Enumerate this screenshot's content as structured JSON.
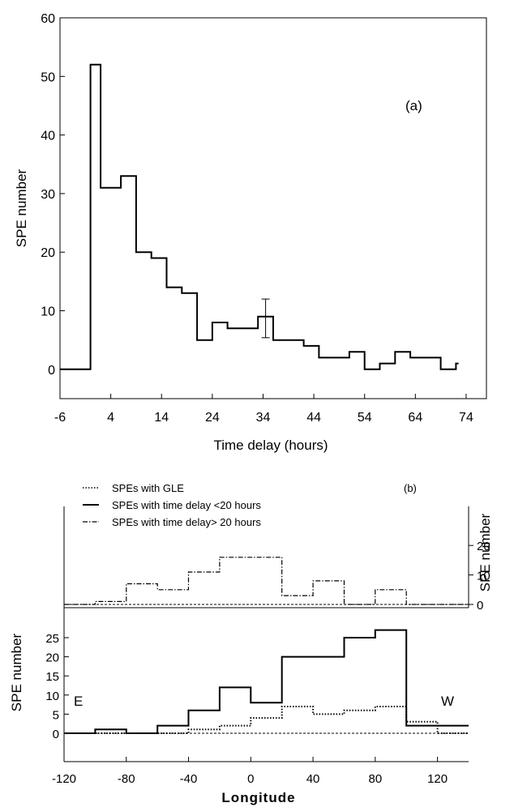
{
  "chart_data": [
    {
      "type": "line",
      "step": true,
      "panel_label": "(a)",
      "xlabel": "Time delay (hours)",
      "ylabel": "SPE number",
      "xlim": [
        -6,
        78
      ],
      "ylim": [
        -5,
        60
      ],
      "xticks": [
        -6,
        4,
        14,
        24,
        34,
        44,
        54,
        64,
        74
      ],
      "yticks": [
        0,
        10,
        20,
        30,
        40,
        50,
        60
      ],
      "series": [
        {
          "bins": [
            [
              -6,
              0,
              0
            ],
            [
              0,
              2,
              52
            ],
            [
              2,
              6,
              31
            ],
            [
              6,
              9,
              33
            ],
            [
              9,
              12,
              20
            ],
            [
              12,
              15,
              19
            ],
            [
              15,
              18,
              14
            ],
            [
              18,
              21,
              13
            ],
            [
              21,
              24,
              5
            ],
            [
              24,
              27,
              8
            ],
            [
              27,
              33,
              7
            ],
            [
              33,
              36,
              9
            ],
            [
              36,
              42,
              5
            ],
            [
              42,
              45,
              4
            ],
            [
              45,
              51,
              2
            ],
            [
              51,
              54,
              3
            ],
            [
              54,
              57,
              0
            ],
            [
              57,
              60,
              1
            ],
            [
              60,
              63,
              3
            ],
            [
              63,
              66,
              2
            ],
            [
              66,
              69,
              2
            ],
            [
              69,
              72,
              0
            ],
            [
              72,
              72.5,
              1
            ]
          ]
        }
      ],
      "error_bar": {
        "x": 34.5,
        "y": 9,
        "low": 5.4,
        "high": 12
      }
    },
    {
      "type": "line",
      "step": true,
      "panel_label": "(b)",
      "legend": [
        "SPEs with GLE",
        "SPEs with time delay <20 hours",
        "SPEs with time delay> 20 hours"
      ],
      "top_panel": {
        "ylabel": "SPE number",
        "ylim": [
          0,
          25
        ],
        "yticks": [
          0,
          10,
          20
        ],
        "series": [
          {
            "name": "SPEs with time delay> 20 hours",
            "bins": [
              [
                -120,
                -100,
                0
              ],
              [
                -100,
                -80,
                1
              ],
              [
                -80,
                -60,
                7
              ],
              [
                -60,
                -40,
                5
              ],
              [
                -40,
                -20,
                11
              ],
              [
                -20,
                0,
                16
              ],
              [
                0,
                20,
                16
              ],
              [
                20,
                40,
                3
              ],
              [
                40,
                60,
                8
              ],
              [
                60,
                80,
                0
              ],
              [
                80,
                100,
                5
              ],
              [
                100,
                140,
                0
              ]
            ]
          }
        ]
      },
      "bottom_panel": {
        "ylabel": "SPE number",
        "xlabel": "Longitude",
        "ylim": [
          -11,
          29
        ],
        "yticks": [
          0,
          5,
          10,
          15,
          20,
          25
        ],
        "east_label": "E",
        "west_label": "W",
        "series": [
          {
            "name": "SPEs with time delay <20 hours",
            "bins": [
              [
                -120,
                -100,
                0
              ],
              [
                -100,
                -80,
                1
              ],
              [
                -80,
                -60,
                0
              ],
              [
                -60,
                -40,
                2
              ],
              [
                -40,
                -20,
                6
              ],
              [
                -20,
                0,
                12
              ],
              [
                0,
                20,
                8
              ],
              [
                20,
                40,
                20
              ],
              [
                40,
                60,
                20
              ],
              [
                60,
                80,
                25
              ],
              [
                80,
                100,
                27
              ],
              [
                100,
                120,
                2
              ],
              [
                120,
                140,
                2
              ]
            ]
          },
          {
            "name": "SPEs with GLE",
            "bins": [
              [
                -120,
                -40,
                0
              ],
              [
                -40,
                -20,
                1
              ],
              [
                -20,
                0,
                2
              ],
              [
                0,
                20,
                4
              ],
              [
                20,
                40,
                7
              ],
              [
                40,
                60,
                5
              ],
              [
                60,
                80,
                6
              ],
              [
                80,
                100,
                7
              ],
              [
                100,
                120,
                3
              ],
              [
                120,
                140,
                0
              ]
            ]
          }
        ]
      },
      "xlim": [
        -120,
        140
      ],
      "xticks": [
        -120,
        -80,
        -40,
        0,
        40,
        80,
        120
      ]
    }
  ]
}
